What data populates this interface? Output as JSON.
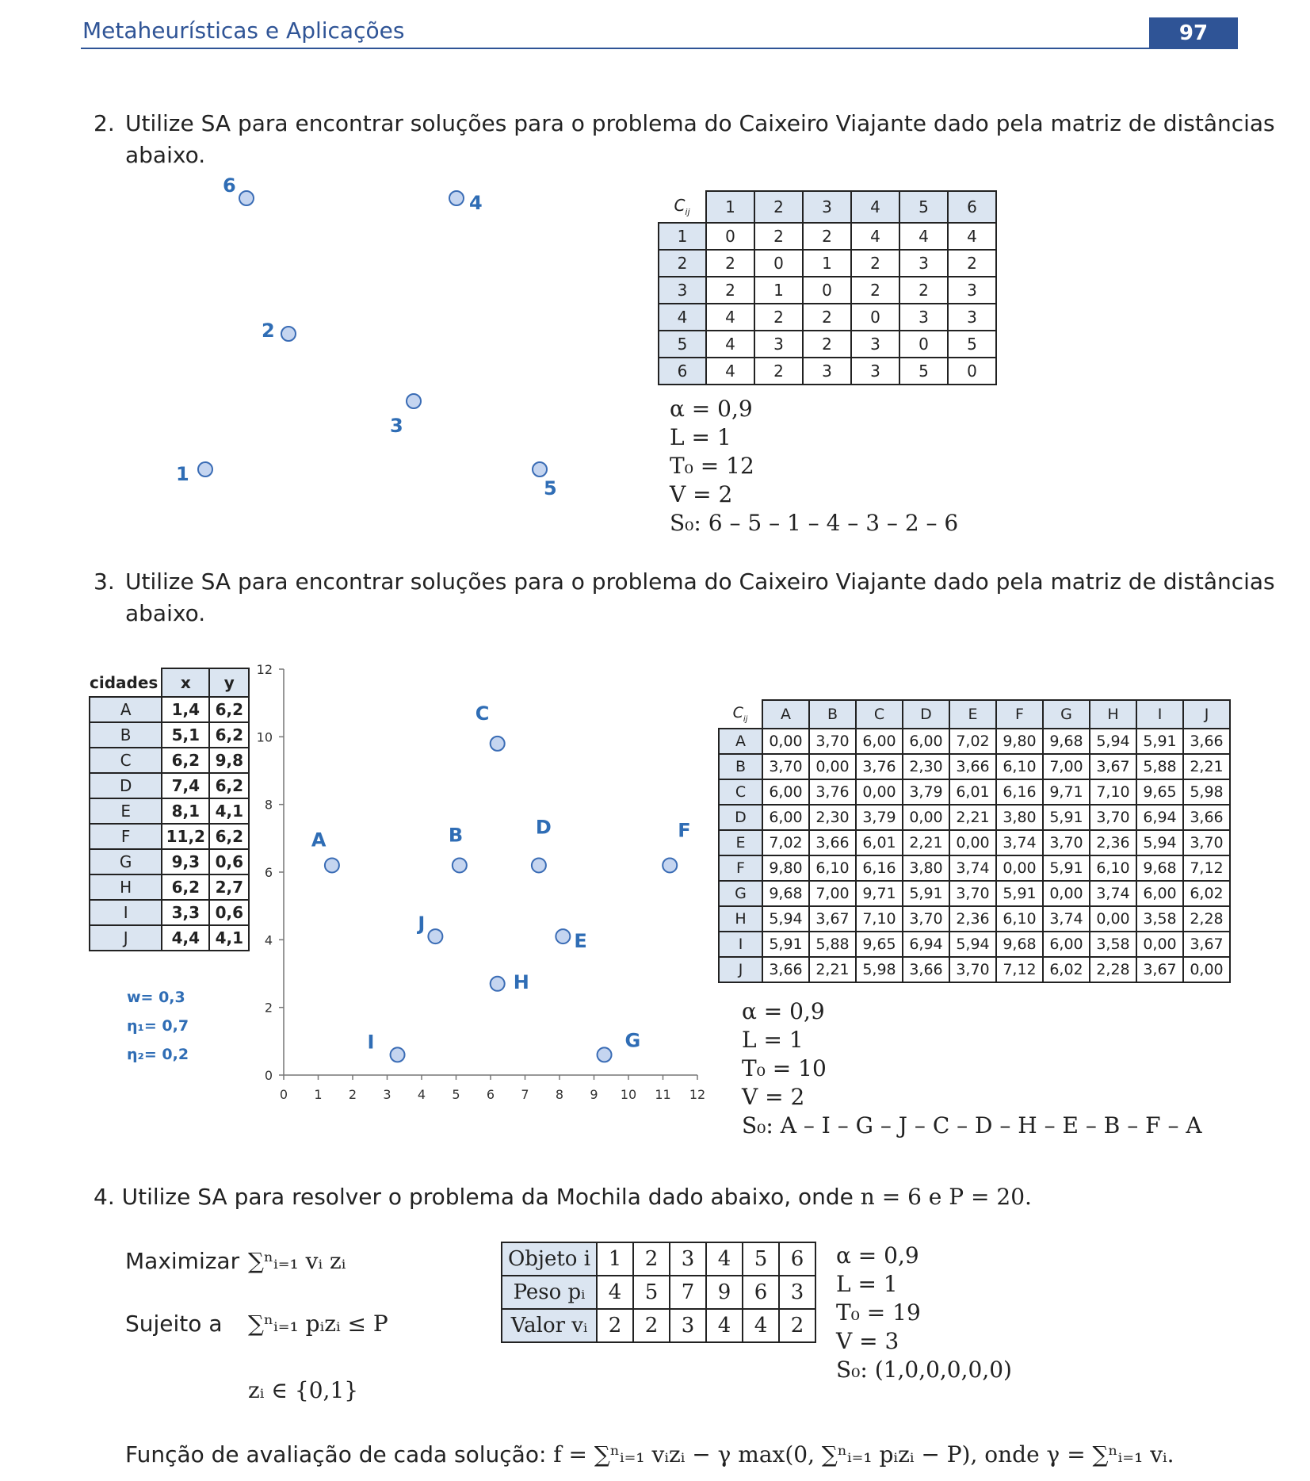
{
  "header": {
    "title": "Metaheurísticas e Aplicações",
    "page": "97"
  },
  "q2": {
    "number": "2.",
    "text_line1": "Utilize SA para encontrar soluções para o problema do Caixeiro Viajante dado pela matriz de distâncias",
    "text_line2": "abaixo.",
    "points": [
      {
        "label": "6"
      },
      {
        "label": "4"
      },
      {
        "label": "2"
      },
      {
        "label": "3"
      },
      {
        "label": "1"
      },
      {
        "label": "5"
      }
    ],
    "matrix": {
      "corner": "C",
      "corner_sub": "ij",
      "headers": [
        "1",
        "2",
        "3",
        "4",
        "5",
        "6"
      ],
      "rows": [
        {
          "h": "1",
          "c": [
            "0",
            "2",
            "2",
            "4",
            "4",
            "4"
          ]
        },
        {
          "h": "2",
          "c": [
            "2",
            "0",
            "1",
            "2",
            "3",
            "2"
          ]
        },
        {
          "h": "3",
          "c": [
            "2",
            "1",
            "0",
            "2",
            "2",
            "3"
          ]
        },
        {
          "h": "4",
          "c": [
            "4",
            "2",
            "2",
            "0",
            "3",
            "3"
          ]
        },
        {
          "h": "5",
          "c": [
            "4",
            "3",
            "2",
            "3",
            "0",
            "5"
          ]
        },
        {
          "h": "6",
          "c": [
            "4",
            "2",
            "3",
            "3",
            "5",
            "0"
          ]
        }
      ]
    },
    "params": [
      "α = 0,9",
      "L = 1",
      "T₀ = 12",
      "V = 2",
      "S₀: 6 – 5 – 1 – 4 – 3 – 2 – 6"
    ]
  },
  "q3": {
    "number": "3.",
    "text_line1": "Utilize SA para encontrar soluções para o problema do Caixeiro Viajante dado pela matriz de distâncias",
    "text_line2": "abaixo.",
    "cities_table": {
      "headers": [
        "cidades",
        "x",
        "y"
      ],
      "rows": [
        {
          "c": "A",
          "x": "1,4",
          "y": "6,2"
        },
        {
          "c": "B",
          "x": "5,1",
          "y": "6,2"
        },
        {
          "c": "C",
          "x": "6,2",
          "y": "9,8"
        },
        {
          "c": "D",
          "x": "7,4",
          "y": "6,2"
        },
        {
          "c": "E",
          "x": "8,1",
          "y": "4,1"
        },
        {
          "c": "F",
          "x": "11,2",
          "y": "6,2"
        },
        {
          "c": "G",
          "x": "9,3",
          "y": "0,6"
        },
        {
          "c": "H",
          "x": "6,2",
          "y": "2,7"
        },
        {
          "c": "I",
          "x": "3,3",
          "y": "0,6"
        },
        {
          "c": "J",
          "x": "4,4",
          "y": "4,1"
        }
      ]
    },
    "weights": [
      "w= 0,3",
      "η₁= 0,7",
      "η₂= 0,2"
    ],
    "chart_data": {
      "type": "scatter",
      "xlim": [
        0,
        12
      ],
      "ylim": [
        0,
        12
      ],
      "x_ticks": [
        "0",
        "1",
        "2",
        "3",
        "4",
        "5",
        "6",
        "7",
        "8",
        "9",
        "10",
        "11",
        "12"
      ],
      "y_ticks": [
        "0",
        "2",
        "4",
        "6",
        "8",
        "10",
        "12"
      ],
      "points": [
        {
          "label": "A",
          "x": 1.4,
          "y": 6.2
        },
        {
          "label": "B",
          "x": 5.1,
          "y": 6.2
        },
        {
          "label": "C",
          "x": 6.2,
          "y": 9.8
        },
        {
          "label": "D",
          "x": 7.4,
          "y": 6.2
        },
        {
          "label": "E",
          "x": 8.1,
          "y": 4.1
        },
        {
          "label": "F",
          "x": 11.2,
          "y": 6.2
        },
        {
          "label": "G",
          "x": 9.3,
          "y": 0.6
        },
        {
          "label": "H",
          "x": 6.2,
          "y": 2.7
        },
        {
          "label": "I",
          "x": 3.3,
          "y": 0.6
        },
        {
          "label": "J",
          "x": 4.4,
          "y": 4.1
        }
      ]
    },
    "matrix": {
      "corner": "C",
      "corner_sub": "ij",
      "headers": [
        "A",
        "B",
        "C",
        "D",
        "E",
        "F",
        "G",
        "H",
        "I",
        "J"
      ],
      "rows": [
        {
          "h": "A",
          "c": [
            "0,00",
            "3,70",
            "6,00",
            "6,00",
            "7,02",
            "9,80",
            "9,68",
            "5,94",
            "5,91",
            "3,66"
          ]
        },
        {
          "h": "B",
          "c": [
            "3,70",
            "0,00",
            "3,76",
            "2,30",
            "3,66",
            "6,10",
            "7,00",
            "3,67",
            "5,88",
            "2,21"
          ]
        },
        {
          "h": "C",
          "c": [
            "6,00",
            "3,76",
            "0,00",
            "3,79",
            "6,01",
            "6,16",
            "9,71",
            "7,10",
            "9,65",
            "5,98"
          ]
        },
        {
          "h": "D",
          "c": [
            "6,00",
            "2,30",
            "3,79",
            "0,00",
            "2,21",
            "3,80",
            "5,91",
            "3,70",
            "6,94",
            "3,66"
          ]
        },
        {
          "h": "E",
          "c": [
            "7,02",
            "3,66",
            "6,01",
            "2,21",
            "0,00",
            "3,74",
            "3,70",
            "2,36",
            "5,94",
            "3,70"
          ]
        },
        {
          "h": "F",
          "c": [
            "9,80",
            "6,10",
            "6,16",
            "3,80",
            "3,74",
            "0,00",
            "5,91",
            "6,10",
            "9,68",
            "7,12"
          ]
        },
        {
          "h": "G",
          "c": [
            "9,68",
            "7,00",
            "9,71",
            "5,91",
            "3,70",
            "5,91",
            "0,00",
            "3,74",
            "6,00",
            "6,02"
          ]
        },
        {
          "h": "H",
          "c": [
            "5,94",
            "3,67",
            "7,10",
            "3,70",
            "2,36",
            "6,10",
            "3,74",
            "0,00",
            "3,58",
            "2,28"
          ]
        },
        {
          "h": "I",
          "c": [
            "5,91",
            "5,88",
            "9,65",
            "6,94",
            "5,94",
            "9,68",
            "6,00",
            "3,58",
            "0,00",
            "3,67"
          ]
        },
        {
          "h": "J",
          "c": [
            "3,66",
            "2,21",
            "5,98",
            "3,66",
            "3,70",
            "7,12",
            "6,02",
            "2,28",
            "3,67",
            "0,00"
          ]
        }
      ]
    },
    "params": [
      "α = 0,9",
      "L = 1",
      "T₀ = 10",
      "V = 2",
      "S₀: A – I – G – J – C – D – H – E – B – F – A"
    ]
  },
  "q4": {
    "intro": "4. Utilize SA para resolver o problema da Mochila dado abaixo, onde",
    "intro_math": "n = 6 e P = 20.",
    "maximize_label": "Maximizar",
    "maximize_expr": "∑ⁿᵢ₌₁ vᵢ zᵢ",
    "subject_label": "Sujeito a",
    "subject_expr": "∑ⁿᵢ₌₁ pᵢzᵢ ≤ P",
    "domain_expr": "zᵢ ∈ {0,1}",
    "table": {
      "rows": [
        {
          "h": "Objeto i",
          "c": [
            "1",
            "2",
            "3",
            "4",
            "5",
            "6"
          ]
        },
        {
          "h": "Peso pᵢ",
          "c": [
            "4",
            "5",
            "7",
            "9",
            "6",
            "3"
          ]
        },
        {
          "h": "Valor vᵢ",
          "c": [
            "2",
            "2",
            "3",
            "4",
            "4",
            "2"
          ]
        }
      ]
    },
    "params": [
      "α = 0,9",
      "L = 1",
      "T₀ = 19",
      "V = 3",
      "S₀: (1,0,0,0,0,0)"
    ],
    "eval_label": "Função de avaliação de cada solução:",
    "eval_expr": "f = ∑ⁿᵢ₌₁ vᵢzᵢ − γ max(0, ∑ⁿᵢ₌₁ pᵢzᵢ − P), onde γ = ∑ⁿᵢ₌₁ vᵢ."
  }
}
